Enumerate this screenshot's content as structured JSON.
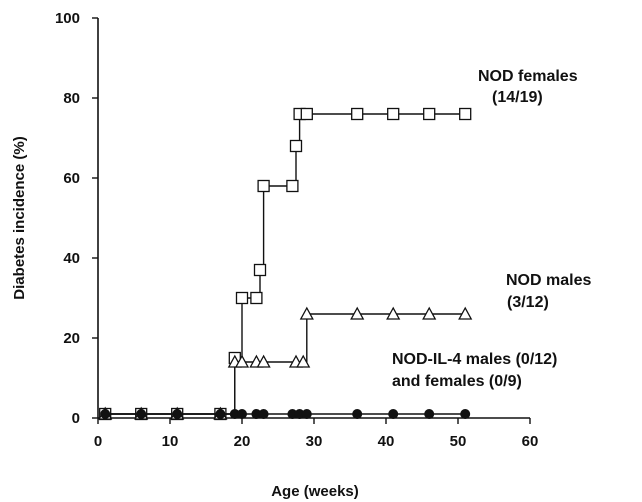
{
  "chart_data": {
    "type": "line",
    "xlabel": "Age (weeks)",
    "ylabel": "Diabetes incidence (%)",
    "xlim": [
      0,
      60
    ],
    "ylim": [
      0,
      100
    ],
    "x_ticks": [
      "0",
      "10",
      "20",
      "30",
      "40",
      "50",
      "60"
    ],
    "y_ticks": [
      "0",
      "20",
      "40",
      "60",
      "80",
      "100"
    ],
    "grid": false,
    "legend": "none",
    "series": [
      {
        "name": "NOD females",
        "marker": "square-open",
        "step": true,
        "points": [
          [
            1,
            1
          ],
          [
            6,
            1
          ],
          [
            11,
            1
          ],
          [
            17,
            1
          ],
          [
            19,
            15
          ],
          [
            20,
            30
          ],
          [
            22,
            30
          ],
          [
            22.5,
            37
          ],
          [
            23,
            58
          ],
          [
            27,
            58
          ],
          [
            27.5,
            68
          ],
          [
            28,
            76
          ],
          [
            29,
            76
          ],
          [
            36,
            76
          ],
          [
            41,
            76
          ],
          [
            46,
            76
          ],
          [
            51,
            76
          ]
        ]
      },
      {
        "name": "NOD males",
        "marker": "triangle-open",
        "step": true,
        "points": [
          [
            1,
            1
          ],
          [
            6,
            1
          ],
          [
            11,
            1
          ],
          [
            17,
            1
          ],
          [
            19,
            14
          ],
          [
            20,
            14
          ],
          [
            22,
            14
          ],
          [
            23,
            14
          ],
          [
            27.5,
            14
          ],
          [
            28.5,
            14
          ],
          [
            29,
            26
          ],
          [
            36,
            26
          ],
          [
            41,
            26
          ],
          [
            46,
            26
          ],
          [
            51,
            26
          ]
        ]
      },
      {
        "name": "NOD-IL-4 males and females",
        "marker": "circle-filled",
        "step": false,
        "points": [
          [
            1,
            1
          ],
          [
            6,
            1
          ],
          [
            11,
            1
          ],
          [
            17,
            1
          ],
          [
            19,
            1
          ],
          [
            20,
            1
          ],
          [
            22,
            1
          ],
          [
            23,
            1
          ],
          [
            27,
            1
          ],
          [
            28,
            1
          ],
          [
            29,
            1
          ],
          [
            36,
            1
          ],
          [
            41,
            1
          ],
          [
            46,
            1
          ],
          [
            51,
            1
          ]
        ]
      }
    ],
    "annotations": [
      {
        "id": "nod-females",
        "lines": [
          "NOD  females",
          "(14/19)"
        ]
      },
      {
        "id": "nod-males",
        "lines": [
          "NOD  males",
          "(3/12)"
        ]
      },
      {
        "id": "nod-il4",
        "lines": [
          "NOD-IL-4  males  (0/12)",
          "and  females  (0/9)"
        ]
      }
    ]
  }
}
